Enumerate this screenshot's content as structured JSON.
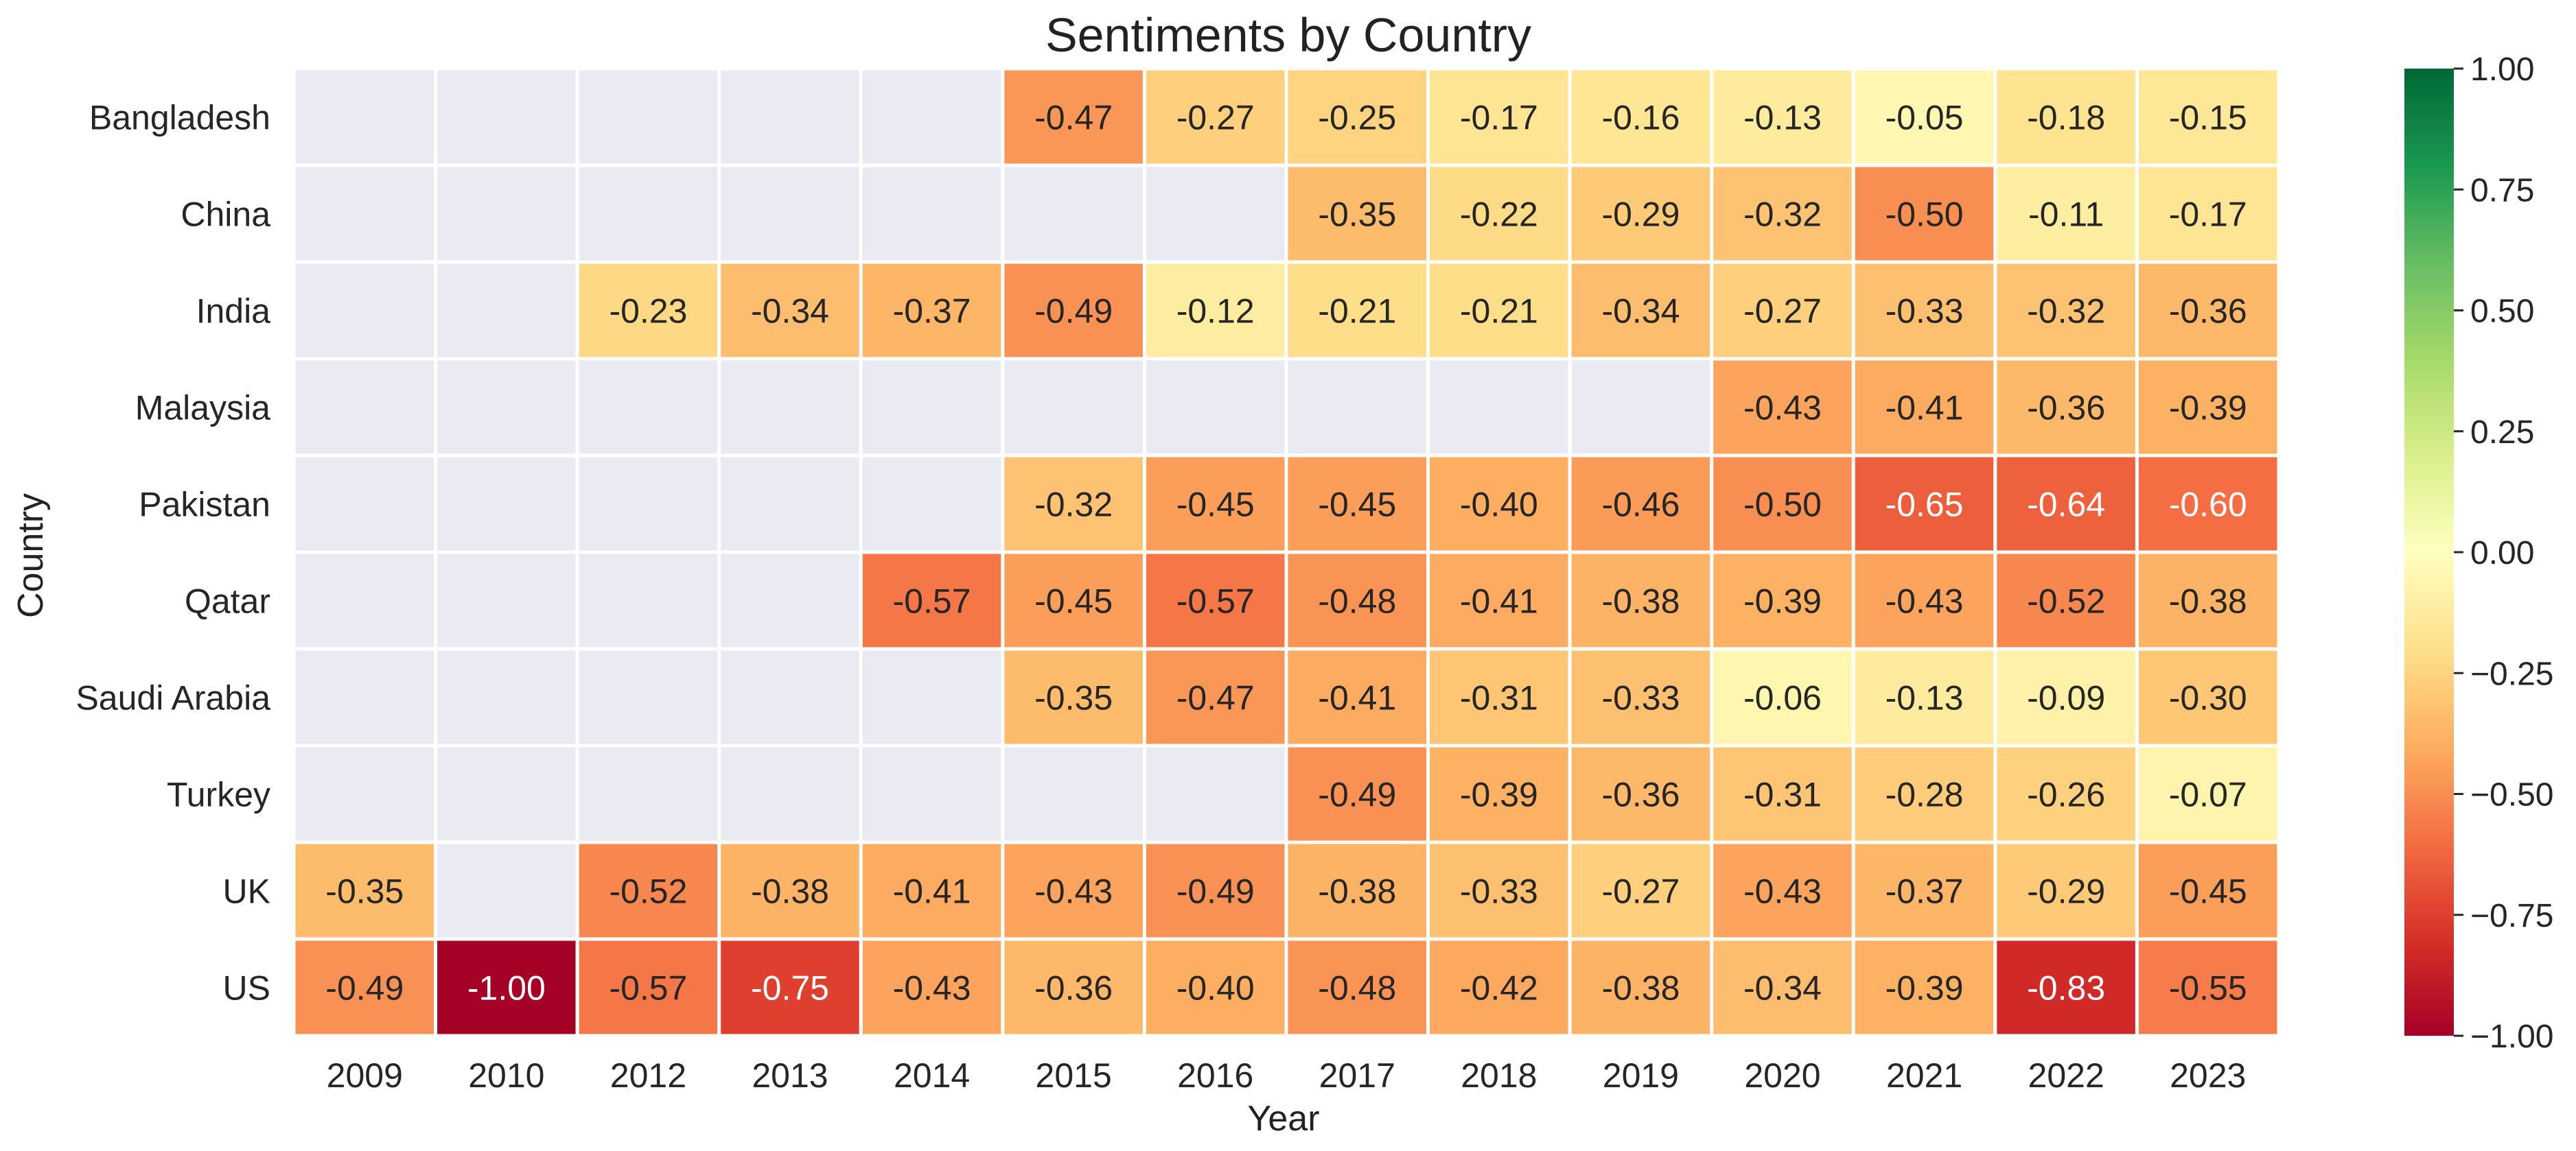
{
  "chart_data": {
    "type": "heatmap",
    "title": "Sentiments by Country",
    "xlabel": "Year",
    "ylabel": "Country",
    "x": [
      "2009",
      "2010",
      "2012",
      "2013",
      "2014",
      "2015",
      "2016",
      "2017",
      "2018",
      "2019",
      "2020",
      "2021",
      "2022",
      "2023"
    ],
    "y": [
      "Bangladesh",
      "China",
      "India",
      "Malaysia",
      "Pakistan",
      "Qatar",
      "Saudi Arabia",
      "Turkey",
      "UK",
      "US"
    ],
    "values": [
      [
        null,
        null,
        null,
        null,
        null,
        -0.47,
        -0.27,
        -0.25,
        -0.17,
        -0.16,
        -0.13,
        -0.05,
        -0.18,
        -0.15
      ],
      [
        null,
        null,
        null,
        null,
        null,
        null,
        null,
        -0.35,
        -0.22,
        -0.29,
        -0.32,
        -0.5,
        -0.11,
        -0.17
      ],
      [
        null,
        null,
        -0.23,
        -0.34,
        -0.37,
        -0.49,
        -0.12,
        -0.21,
        -0.21,
        -0.34,
        -0.27,
        -0.33,
        -0.32,
        -0.36
      ],
      [
        null,
        null,
        null,
        null,
        null,
        null,
        null,
        null,
        null,
        null,
        -0.43,
        -0.41,
        -0.36,
        -0.39
      ],
      [
        null,
        null,
        null,
        null,
        null,
        -0.32,
        -0.45,
        -0.45,
        -0.4,
        -0.46,
        -0.5,
        -0.65,
        -0.64,
        -0.6
      ],
      [
        null,
        null,
        null,
        null,
        -0.57,
        -0.45,
        -0.57,
        -0.48,
        -0.41,
        -0.38,
        -0.39,
        -0.43,
        -0.52,
        -0.38
      ],
      [
        null,
        null,
        null,
        null,
        null,
        -0.35,
        -0.47,
        -0.41,
        -0.31,
        -0.33,
        -0.06,
        -0.13,
        -0.09,
        -0.3
      ],
      [
        null,
        null,
        null,
        null,
        null,
        null,
        null,
        -0.49,
        -0.39,
        -0.36,
        -0.31,
        -0.28,
        -0.26,
        -0.07
      ],
      [
        -0.35,
        null,
        -0.52,
        -0.38,
        -0.41,
        -0.43,
        -0.49,
        -0.38,
        -0.33,
        -0.27,
        -0.43,
        -0.37,
        -0.29,
        -0.45
      ],
      [
        -0.49,
        -1.0,
        -0.57,
        -0.75,
        -0.43,
        -0.36,
        -0.4,
        -0.48,
        -0.42,
        -0.38,
        -0.34,
        -0.39,
        -0.83,
        -0.55
      ]
    ],
    "value_labels": [
      [
        null,
        null,
        null,
        null,
        null,
        "-0.47",
        "-0.27",
        "-0.25",
        "-0.17",
        "-0.16",
        "-0.13",
        "-0.05",
        "-0.18",
        "-0.15"
      ],
      [
        null,
        null,
        null,
        null,
        null,
        null,
        null,
        "-0.35",
        "-0.22",
        "-0.29",
        "-0.32",
        "-0.50",
        "-0.11",
        "-0.17"
      ],
      [
        null,
        null,
        "-0.23",
        "-0.34",
        "-0.37",
        "-0.49",
        "-0.12",
        "-0.21",
        "-0.21",
        "-0.34",
        "-0.27",
        "-0.33",
        "-0.32",
        "-0.36"
      ],
      [
        null,
        null,
        null,
        null,
        null,
        null,
        null,
        null,
        null,
        null,
        "-0.43",
        "-0.41",
        "-0.36",
        "-0.39"
      ],
      [
        null,
        null,
        null,
        null,
        null,
        "-0.32",
        "-0.45",
        "-0.45",
        "-0.40",
        "-0.46",
        "-0.50",
        "-0.65",
        "-0.64",
        "-0.60"
      ],
      [
        null,
        null,
        null,
        null,
        "-0.57",
        "-0.45",
        "-0.57",
        "-0.48",
        "-0.41",
        "-0.38",
        "-0.39",
        "-0.43",
        "-0.52",
        "-0.38"
      ],
      [
        null,
        null,
        null,
        null,
        null,
        "-0.35",
        "-0.47",
        "-0.41",
        "-0.31",
        "-0.33",
        "-0.06",
        "-0.13",
        "-0.09",
        "-0.30"
      ],
      [
        null,
        null,
        null,
        null,
        null,
        null,
        null,
        "-0.49",
        "-0.39",
        "-0.36",
        "-0.31",
        "-0.28",
        "-0.26",
        "-0.07"
      ],
      [
        "-0.35",
        null,
        "-0.52",
        "-0.38",
        "-0.41",
        "-0.43",
        "-0.49",
        "-0.38",
        "-0.33",
        "-0.27",
        "-0.43",
        "-0.37",
        "-0.29",
        "-0.45"
      ],
      [
        "-0.49",
        "-1.00",
        "-0.57",
        "-0.75",
        "-0.43",
        "-0.36",
        "-0.40",
        "-0.48",
        "-0.42",
        "-0.38",
        "-0.34",
        "-0.39",
        "-0.83",
        "-0.55"
      ]
    ],
    "vmin": -1.0,
    "vmax": 1.0,
    "colormap": "RdYlGn",
    "colormap_stops": [
      "#a50026",
      "#d73027",
      "#f46d43",
      "#fdae61",
      "#fee08b",
      "#ffffbf",
      "#d9ef8b",
      "#a6d96a",
      "#66bd63",
      "#1a9850",
      "#006837"
    ],
    "missing_color": "#eaeaf2",
    "cell_border_color": "#ffffff",
    "colorbar_ticks": [
      1.0,
      0.75,
      0.5,
      0.25,
      0.0,
      -0.25,
      -0.5,
      -0.75,
      -1.0
    ],
    "colorbar_tick_labels": [
      "1.00",
      "0.75",
      "0.50",
      "0.25",
      "0.00",
      "−0.25",
      "−0.50",
      "−0.75",
      "−1.00"
    ]
  }
}
